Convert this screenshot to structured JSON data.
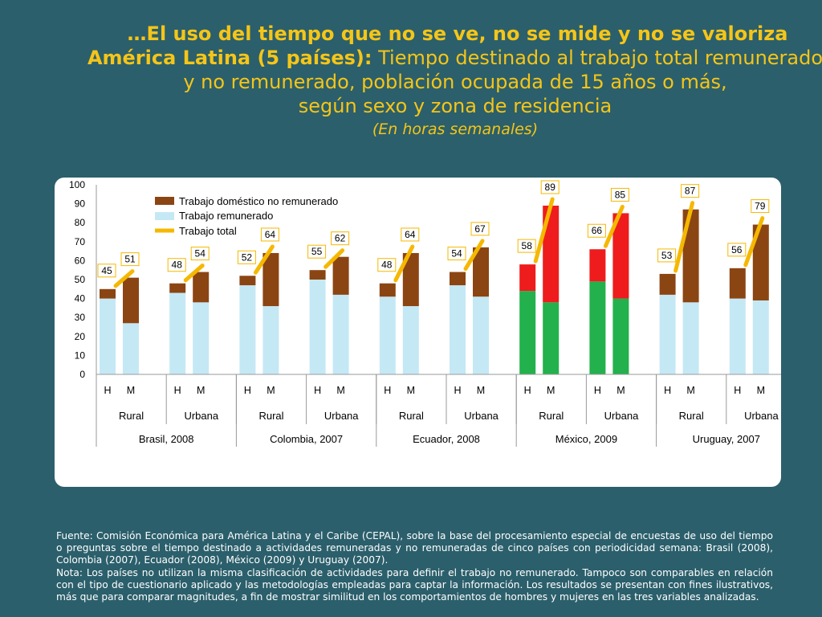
{
  "title": {
    "line1": "…El uso del tiempo que no se ve,  no se mide y no se valoriza",
    "line2_bold": "América Latina (5 países):",
    "line2_rest": " Tiempo destinado al trabajo total remunerado",
    "line3": "y no remunerado, población ocupada de 15 años o más,",
    "line4": "según sexo y zona de residencia",
    "line5": "(En horas semanales)"
  },
  "footer": {
    "source": "Fuente: Comisión Económica para América Latina y el Caribe (CEPAL), sobre la base del procesamiento especial de encuestas de uso del tiempo o preguntas sobre el tiempo destinado a actividades remuneradas y no remuneradas de cinco países con periodicidad semana: Brasil (2008), Colombia (2007), Ecuador (2008), México (2009) y Uruguay  (2007).",
    "note": "Nota: Los países no utilizan la misma clasificación de actividades para definir el trabajo no remunerado. Tampoco son comparables en relación con el tipo de cuestionario aplicado y las metodologías empleadas para captar la información. Los resultados se presentan con fines ilustrativos, más que para comparar magnitudes, a fin de mostrar similitud en los comportamientos de hombres y mujeres en las tres variables analizadas."
  },
  "chart_data": {
    "type": "bar",
    "stacked": true,
    "ylim": [
      0,
      100
    ],
    "yticks": [
      0,
      10,
      20,
      30,
      40,
      50,
      60,
      70,
      80,
      90,
      100
    ],
    "legend": {
      "placement": "top-left",
      "entries": [
        "Trabajo doméstico no remunerado",
        "Trabajo remunerado",
        "Trabajo total"
      ]
    },
    "colors": {
      "remunerado": "#c5e8f5",
      "domestico": "#8b4513",
      "total_line": "#f5b800",
      "mexico_remunerado": "#22b14c",
      "mexico_domestico": "#ee1c1c"
    },
    "groups": [
      {
        "country": "Brasil, 2008",
        "zones": [
          {
            "zone": "Rural",
            "bars": [
              {
                "sex": "H",
                "remunerado": 40,
                "total": 45
              },
              {
                "sex": "M",
                "remunerado": 27,
                "total": 51
              }
            ]
          },
          {
            "zone": "Urbana",
            "bars": [
              {
                "sex": "H",
                "remunerado": 43,
                "total": 48
              },
              {
                "sex": "M",
                "remunerado": 38,
                "total": 54
              }
            ]
          }
        ]
      },
      {
        "country": "Colombia, 2007",
        "zones": [
          {
            "zone": "Rural",
            "bars": [
              {
                "sex": "H",
                "remunerado": 47,
                "total": 52
              },
              {
                "sex": "M",
                "remunerado": 36,
                "total": 64
              }
            ]
          },
          {
            "zone": "Urbana",
            "bars": [
              {
                "sex": "H",
                "remunerado": 50,
                "total": 55
              },
              {
                "sex": "M",
                "remunerado": 42,
                "total": 62
              }
            ]
          }
        ]
      },
      {
        "country": "Ecuador, 2008",
        "zones": [
          {
            "zone": "Rural",
            "bars": [
              {
                "sex": "H",
                "remunerado": 41,
                "total": 48
              },
              {
                "sex": "M",
                "remunerado": 36,
                "total": 64
              }
            ]
          },
          {
            "zone": "Urbana",
            "bars": [
              {
                "sex": "H",
                "remunerado": 47,
                "total": 54
              },
              {
                "sex": "M",
                "remunerado": 41,
                "total": 67
              }
            ]
          }
        ]
      },
      {
        "country": "México, 2009",
        "zones": [
          {
            "zone": "Rural",
            "bars": [
              {
                "sex": "H",
                "remunerado": 44,
                "total": 58
              },
              {
                "sex": "M",
                "remunerado": 38,
                "total": 89
              }
            ]
          },
          {
            "zone": "Urbana",
            "bars": [
              {
                "sex": "H",
                "remunerado": 49,
                "total": 66
              },
              {
                "sex": "M",
                "remunerado": 40,
                "total": 85
              }
            ]
          }
        ]
      },
      {
        "country": "Uruguay, 2007",
        "zones": [
          {
            "zone": "Rural",
            "bars": [
              {
                "sex": "H",
                "remunerado": 42,
                "total": 53
              },
              {
                "sex": "M",
                "remunerado": 38,
                "total": 87
              }
            ]
          },
          {
            "zone": "Urbana",
            "bars": [
              {
                "sex": "H",
                "remunerado": 40,
                "total": 56
              },
              {
                "sex": "M",
                "remunerado": 39,
                "total": 79
              }
            ]
          }
        ]
      }
    ]
  }
}
